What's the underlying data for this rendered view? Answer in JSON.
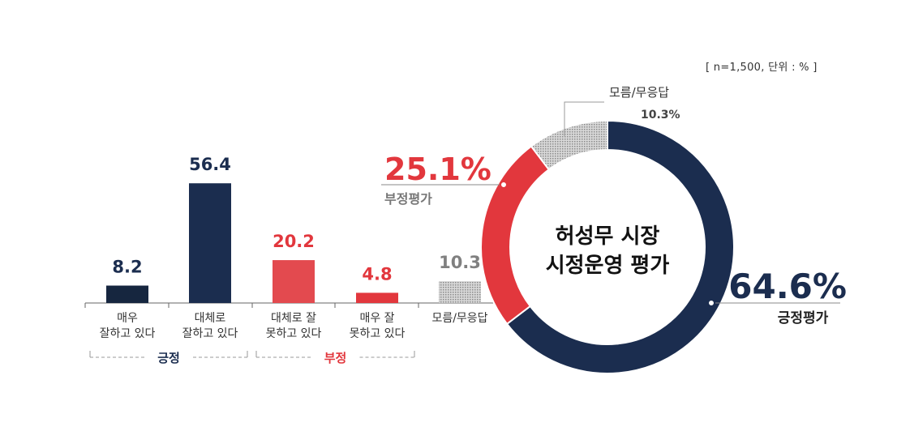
{
  "note": "[ n=1,500, 단위 : % ]",
  "colors": {
    "positive": "#1b2d4f",
    "positive_dark": "#16263f",
    "negative": "#e2373d",
    "negative_light": "#e34a4f",
    "unknown": "#b8b8b8",
    "axis": "#666666",
    "text": "#333333"
  },
  "chart_data": [
    {
      "type": "bar",
      "categories": [
        "매우\n잘하고 있다",
        "대체로\n잘하고 있다",
        "대체로 잘\n못하고 있다",
        "매우 잘\n못하고 있다",
        "모름/무응답"
      ],
      "values": [
        8.2,
        56.4,
        20.2,
        4.8,
        10.3
      ],
      "value_labels": [
        "8.2",
        "56.4",
        "20.2",
        "4.8",
        "10.3"
      ],
      "groups": [
        {
          "name": "긍정",
          "categories": [
            0,
            1
          ]
        },
        {
          "name": "부정",
          "categories": [
            2,
            3
          ]
        }
      ]
    },
    {
      "type": "pie",
      "style": "donut",
      "center_label": [
        "허성무 시장",
        "시정운영 평가"
      ],
      "slices": [
        {
          "name": "긍정평가",
          "value": 64.6,
          "label": "64.6%"
        },
        {
          "name": "부정평가",
          "value": 25.1,
          "label": "25.1%"
        },
        {
          "name": "모름/무응답",
          "value": 10.3,
          "label": "10.3%"
        }
      ]
    }
  ]
}
